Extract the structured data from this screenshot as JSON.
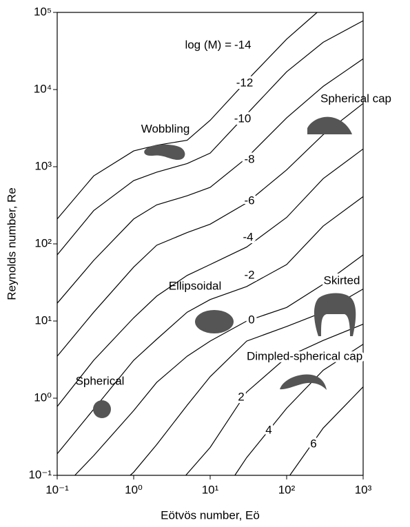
{
  "chart_data": {
    "type": "line",
    "x_label": "Eötvös number, Eö",
    "y_label": "Reynolds number, Re",
    "log_x": true,
    "log_y": true,
    "xlim": [
      0.1,
      1000
    ],
    "ylim": [
      0.1,
      100000
    ],
    "xticks": [
      {
        "value": 0.1,
        "label": "10⁻¹"
      },
      {
        "value": 1,
        "label": "10⁰"
      },
      {
        "value": 10,
        "label": "10¹"
      },
      {
        "value": 100,
        "label": "10²"
      },
      {
        "value": 1000,
        "label": "10³"
      }
    ],
    "yticks": [
      {
        "value": 0.1,
        "label": "10⁻¹"
      },
      {
        "value": 1,
        "label": "10⁰"
      },
      {
        "value": 10,
        "label": "10¹"
      },
      {
        "value": 100,
        "label": "10²"
      },
      {
        "value": 1000,
        "label": "10³"
      },
      {
        "value": 10000,
        "label": "10⁴"
      },
      {
        "value": 100000,
        "label": "10⁵"
      }
    ],
    "curve_label_prefix": "log (M) =",
    "series": [
      {
        "name": "-14",
        "color": "#000000",
        "x": [
          0.1,
          0.3,
          1,
          2,
          5,
          10,
          30,
          100,
          250
        ],
        "values": [
          210,
          760,
          1600,
          1900,
          2200,
          4000,
          13000,
          45000,
          100000
        ]
      },
      {
        "name": "-12",
        "color": "#000000",
        "x": [
          0.1,
          0.3,
          1,
          2,
          5,
          10,
          30,
          100,
          300,
          1000
        ],
        "values": [
          72,
          270,
          660,
          850,
          1100,
          1500,
          4800,
          17000,
          41000,
          78000
        ]
      },
      {
        "name": "-10",
        "color": "#000000",
        "x": [
          0.1,
          0.3,
          1,
          2,
          5,
          10,
          30,
          100,
          300,
          1000
        ],
        "values": [
          17,
          61,
          210,
          320,
          420,
          540,
          1300,
          4300,
          11000,
          25000
        ]
      },
      {
        "name": "-8",
        "color": "#000000",
        "x": [
          0.1,
          0.3,
          1,
          2,
          5,
          10,
          30,
          100,
          300,
          1000
        ],
        "values": [
          3.5,
          13,
          50,
          96,
          140,
          180,
          340,
          910,
          2600,
          6600
        ]
      },
      {
        "name": "-6",
        "color": "#000000",
        "x": [
          0.1,
          0.3,
          1,
          2,
          5,
          10,
          30,
          100,
          300,
          1000
        ],
        "values": [
          0.78,
          3.1,
          11,
          21,
          39,
          54,
          91,
          220,
          700,
          1700
        ]
      },
      {
        "name": "-4",
        "color": "#000000",
        "x": [
          0.1,
          0.3,
          1,
          2,
          5,
          10,
          30,
          100,
          300,
          1000
        ],
        "values": [
          0.19,
          0.72,
          3.1,
          5.8,
          13,
          19,
          28,
          54,
          170,
          410
        ]
      },
      {
        "name": "-2",
        "color": "#000000",
        "x": [
          0.17,
          0.3,
          1,
          2,
          5,
          10,
          30,
          100,
          300,
          1000
        ],
        "values": [
          0.1,
          0.18,
          0.69,
          1.6,
          3.5,
          5.5,
          10,
          15,
          30,
          72
        ]
      },
      {
        "name": "0",
        "color": "#000000",
        "x": [
          0.9,
          1,
          2,
          5,
          10,
          30,
          100,
          300,
          1000
        ],
        "values": [
          0.1,
          0.11,
          0.25,
          0.81,
          1.9,
          5.5,
          8.5,
          13,
          26
        ]
      },
      {
        "name": "2",
        "color": "#000000",
        "x": [
          4.8,
          10,
          30,
          100,
          300,
          1000
        ],
        "values": [
          0.1,
          0.23,
          1.2,
          3.4,
          5.6,
          9.1
        ]
      },
      {
        "name": "4",
        "color": "#000000",
        "x": [
          21,
          30,
          100,
          300,
          1000
        ],
        "values": [
          0.1,
          0.17,
          0.74,
          2.3,
          5
        ]
      },
      {
        "name": "6",
        "color": "#000000",
        "x": [
          110,
          300,
          1000
        ],
        "values": [
          0.1,
          0.41,
          1.4
        ]
      }
    ],
    "annotations": [
      "Wobbling",
      "Spherical cap",
      "Ellipsoidal",
      "Skirted",
      "Dimpled-spherical cap",
      "Spherical"
    ]
  }
}
